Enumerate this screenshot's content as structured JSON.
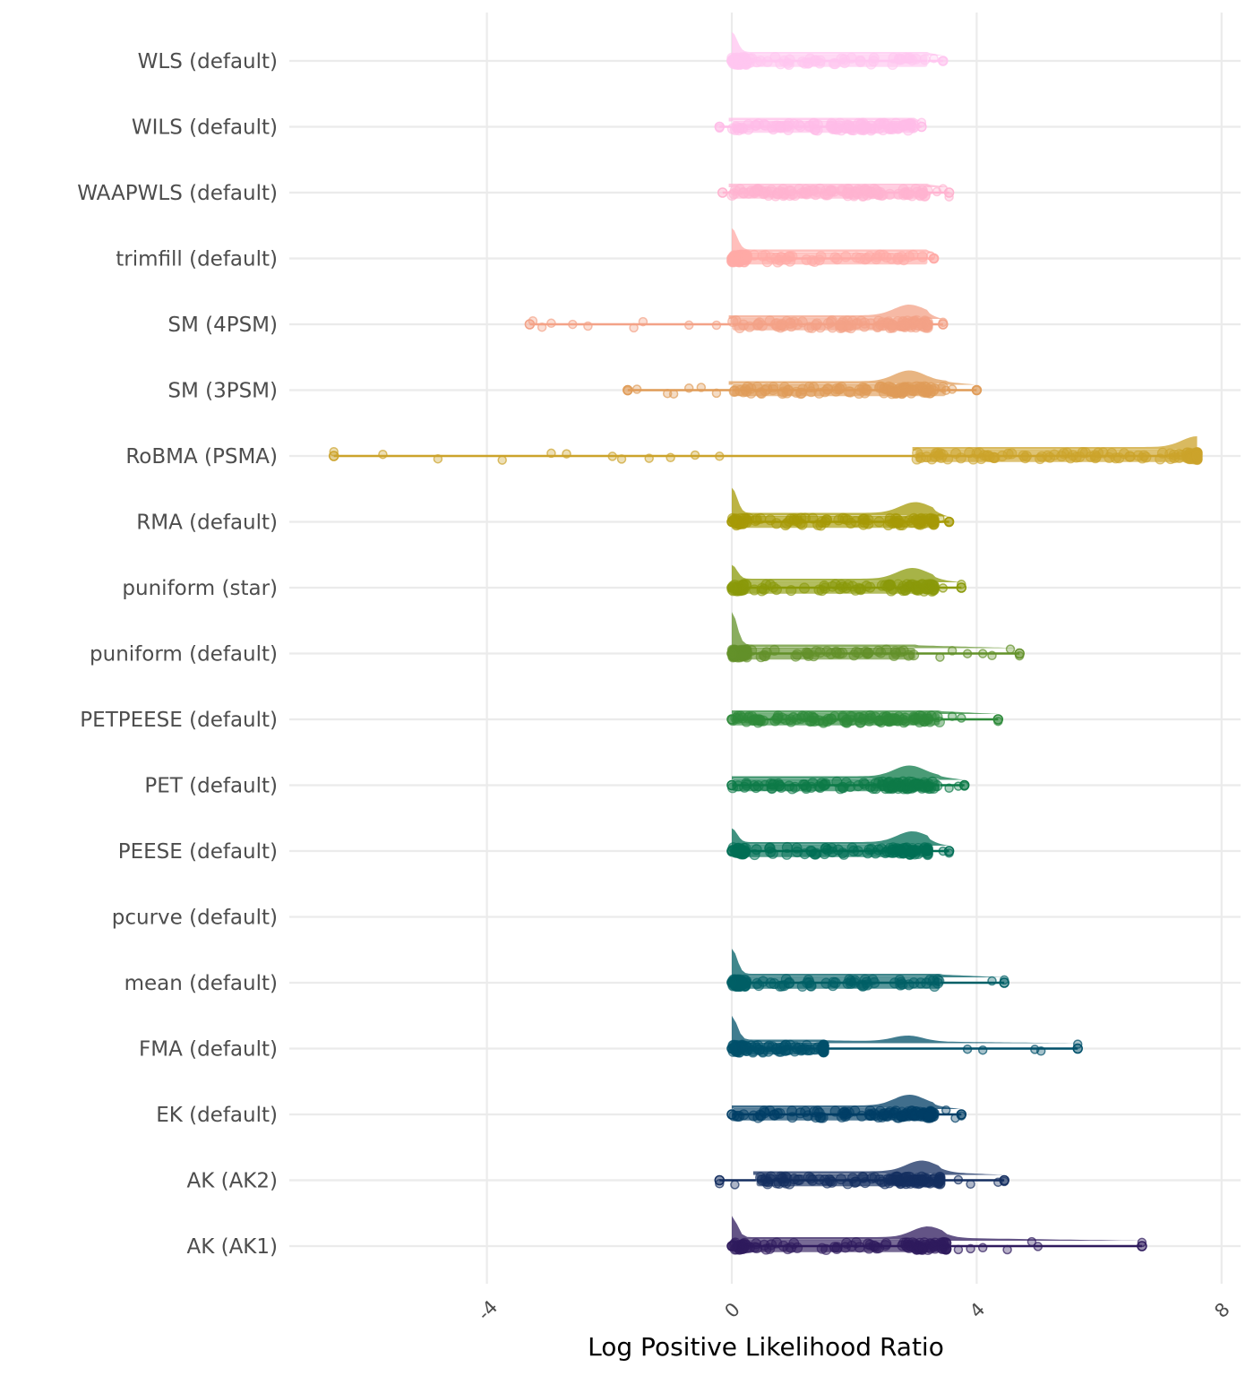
{
  "chart_data": {
    "type": "raincloud",
    "title": "",
    "xlabel": "Log Positive Likelihood Ratio",
    "ylabel": "",
    "xlim": [
      -7.2,
      8.1
    ],
    "xticks": [
      -4,
      0,
      4,
      8
    ],
    "xtick_labels": [
      "-4",
      "0",
      "4",
      "8"
    ],
    "xtick_rotation_deg": 45,
    "grid": true,
    "legend": "none",
    "categories": [
      "WLS (default)",
      "WILS (default)",
      "WAAPWLS (default)",
      "trimfill (default)",
      "SM (4PSM)",
      "SM (3PSM)",
      "RoBMA (PSMA)",
      "RMA (default)",
      "puniform (star)",
      "puniform (default)",
      "PETPEESE (default)",
      "PET (default)",
      "PEESE (default)",
      "pcurve (default)",
      "mean (default)",
      "FMA (default)",
      "EK (default)",
      "AK (AK2)",
      "AK (AK1)"
    ],
    "series": [
      {
        "name": "WLS (default)",
        "color": "#FFC6F0",
        "min": 0.0,
        "max": 3.45,
        "box_q1": 0.0,
        "box_q3": 3.2,
        "spike_at_zero": 0.8,
        "mode": null,
        "outliers": [
          3.3,
          3.45
        ]
      },
      {
        "name": "WILS (default)",
        "color": "#FFBDE8",
        "min": -0.2,
        "max": 3.1,
        "box_q1": 0.0,
        "box_q3": 3.0,
        "spike_at_zero": 0.0,
        "mode": null,
        "outliers": [
          -0.2,
          3.1
        ]
      },
      {
        "name": "WAAPWLS (default)",
        "color": "#FFB3D0",
        "min": -0.15,
        "max": 3.55,
        "box_q1": 0.0,
        "box_q3": 3.2,
        "spike_at_zero": 0.0,
        "mode": null,
        "outliers": [
          3.35,
          3.45,
          3.55
        ]
      },
      {
        "name": "trimfill (default)",
        "color": "#FFAAA6",
        "min": 0.0,
        "max": 3.3,
        "box_q1": 0.0,
        "box_q3": 3.2,
        "spike_at_zero": 0.85,
        "mode": null,
        "outliers": [
          3.25,
          3.3
        ]
      },
      {
        "name": "SM (4PSM)",
        "color": "#F3A287",
        "min": -3.3,
        "max": 3.45,
        "box_q1": 0.0,
        "box_q3": 3.2,
        "spike_at_zero": 0.0,
        "mode": 2.9,
        "outliers": [
          -3.25,
          -3.1,
          -2.95,
          -2.6,
          -2.35,
          -1.6,
          -1.45,
          -0.7,
          -0.25,
          3.45
        ]
      },
      {
        "name": "SM (3PSM)",
        "color": "#E09C58",
        "min": -1.7,
        "max": 4.0,
        "box_q1": 0.0,
        "box_q3": 3.5,
        "spike_at_zero": 0.0,
        "mode": 2.9,
        "outliers": [
          -1.7,
          -1.55,
          -1.05,
          -0.95,
          -0.7,
          -0.5,
          -0.25,
          3.5,
          3.6,
          4.0
        ]
      },
      {
        "name": "RoBMA (PSMA)",
        "color": "#CCA32B",
        "min": -6.5,
        "max": 7.6,
        "box_q1": 3.0,
        "box_q3": 7.6,
        "spike_at_zero": 0.0,
        "mode": 7.6,
        "outliers": [
          -6.5,
          -5.7,
          -4.8,
          -3.75,
          -2.95,
          -2.7,
          -1.95,
          -1.8,
          -1.35,
          -1.0,
          -0.6,
          -0.2
        ]
      },
      {
        "name": "RMA (default)",
        "color": "#A69A06",
        "min": 0.0,
        "max": 3.55,
        "box_q1": 0.0,
        "box_q3": 3.3,
        "spike_at_zero": 1.0,
        "mode": 3.0,
        "outliers": [
          3.4,
          3.55
        ]
      },
      {
        "name": "puniform (star)",
        "color": "#8A9A0A",
        "min": 0.0,
        "max": 3.75,
        "box_q1": 0.0,
        "box_q3": 3.3,
        "spike_at_zero": 0.55,
        "mode": 2.95,
        "outliers": [
          3.45,
          3.75
        ]
      },
      {
        "name": "puniform (default)",
        "color": "#63912A",
        "min": 0.0,
        "max": 4.7,
        "box_q1": 0.0,
        "box_q3": 3.0,
        "spike_at_zero": 1.3,
        "mode": null,
        "outliers": [
          3.4,
          3.6,
          3.85,
          4.1,
          4.25,
          4.55,
          4.7
        ]
      },
      {
        "name": "PETPEESE (default)",
        "color": "#2E8A3A",
        "min": 0.0,
        "max": 4.35,
        "box_q1": 0.0,
        "box_q3": 3.4,
        "spike_at_zero": 0.0,
        "mode": null,
        "outliers": [
          3.6,
          3.75,
          4.35
        ]
      },
      {
        "name": "PET (default)",
        "color": "#0D7A48",
        "min": 0.0,
        "max": 3.8,
        "box_q1": 0.0,
        "box_q3": 3.4,
        "spike_at_zero": 0.0,
        "mode": 2.9,
        "outliers": [
          3.55,
          3.7,
          3.8
        ]
      },
      {
        "name": "PEESE (default)",
        "color": "#006E55",
        "min": 0.0,
        "max": 3.55,
        "box_q1": 0.0,
        "box_q3": 3.2,
        "spike_at_zero": 0.55,
        "mode": 2.95,
        "outliers": [
          3.45,
          3.55
        ]
      },
      {
        "name": "pcurve (default)",
        "color": "#00665C",
        "min": null,
        "max": null,
        "box_q1": null,
        "box_q3": null,
        "spike_at_zero": 0.0,
        "mode": null,
        "outliers": []
      },
      {
        "name": "mean (default)",
        "color": "#005F66",
        "min": 0.0,
        "max": 4.45,
        "box_q1": 0.0,
        "box_q3": 3.4,
        "spike_at_zero": 1.0,
        "mode": null,
        "outliers": [
          4.25,
          4.45
        ]
      },
      {
        "name": "FMA (default)",
        "color": "#00506A",
        "min": 0.0,
        "max": 5.65,
        "box_q1": 0.0,
        "box_q3": 1.5,
        "spike_at_zero": 0.95,
        "mode": 2.9,
        "outliers": [
          3.85,
          4.1,
          4.95,
          5.05,
          5.65
        ]
      },
      {
        "name": "EK (default)",
        "color": "#003E66",
        "min": 0.0,
        "max": 3.75,
        "box_q1": 0.0,
        "box_q3": 3.3,
        "spike_at_zero": 0.0,
        "mode": 2.9,
        "outliers": [
          3.5,
          3.65,
          3.75
        ]
      },
      {
        "name": "AK (AK2)",
        "color": "#142E60",
        "min": -0.2,
        "max": 4.45,
        "box_q1": 0.4,
        "box_q3": 3.4,
        "spike_at_zero": 0.0,
        "mode": 3.1,
        "outliers": [
          -0.2,
          0.05,
          3.7,
          3.9,
          4.35,
          4.45
        ]
      },
      {
        "name": "AK (AK1)",
        "color": "#2F1B5E",
        "min": 0.0,
        "max": 6.7,
        "box_q1": 0.0,
        "box_q3": 3.5,
        "spike_at_zero": 0.85,
        "mode": 3.2,
        "outliers": [
          3.7,
          3.9,
          4.1,
          4.5,
          4.9,
          5.0,
          6.7
        ]
      }
    ]
  }
}
